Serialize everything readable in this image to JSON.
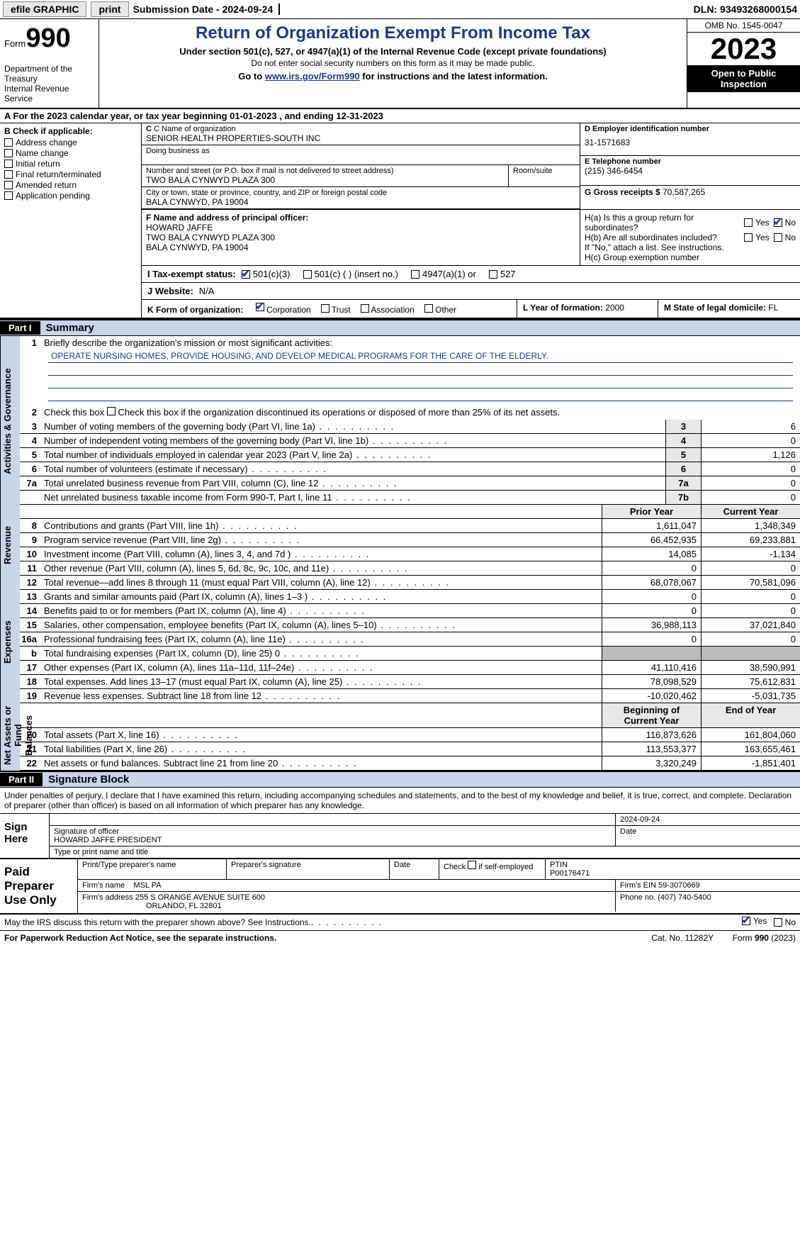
{
  "colors": {
    "accent": "#1a3a8a",
    "part_header_bg": "#000000",
    "part_header_fg": "#ffffff",
    "shade_bg": "#c8d4e8",
    "grey_box": "#e8e8e8",
    "disabled_cell": "#bbbbbb"
  },
  "topbar": {
    "efile": "efile GRAPHIC",
    "print": "print",
    "submission": "Submission Date - 2024-09-24",
    "dln": "DLN: 93493268000154"
  },
  "header": {
    "form_word": "Form",
    "form_num": "990",
    "dept": "Department of the Treasury",
    "irs": "Internal Revenue Service",
    "title": "Return of Organization Exempt From Income Tax",
    "subtitle": "Under section 501(c), 527, or 4947(a)(1) of the Internal Revenue Code (except private foundations)",
    "note": "Do not enter social security numbers on this form as it may be made public.",
    "goto_pre": "Go to ",
    "goto_link": "www.irs.gov/Form990",
    "goto_post": " for instructions and the latest information.",
    "omb": "OMB No. 1545-0047",
    "year": "2023",
    "inspection": "Open to Public Inspection"
  },
  "lineA": "A For the 2023 calendar year, or tax year beginning 01-01-2023   , and ending 12-31-2023",
  "sectionB": {
    "header": "B Check if applicable:",
    "items": [
      "Address change",
      "Name change",
      "Initial return",
      "Final return/terminated",
      "Amended return",
      "Application pending"
    ]
  },
  "sectionC": {
    "name_lbl": "C Name of organization",
    "name": "SENIOR HEALTH PROPERTIES-SOUTH INC",
    "dba_lbl": "Doing business as",
    "dba": "",
    "addr_lbl": "Number and street (or P.O. box if mail is not delivered to street address)",
    "addr": "TWO BALA CYNWYD PLAZA 300",
    "room_lbl": "Room/suite",
    "city_lbl": "City or town, state or province, country, and ZIP or foreign postal code",
    "city": "BALA CYNWYD, PA  19004"
  },
  "sectionD": {
    "lbl": "D Employer identification number",
    "val": "31-1571683"
  },
  "sectionE": {
    "lbl": "E Telephone number",
    "val": "(215) 346-6454"
  },
  "sectionG": {
    "lbl": "G Gross receipts $",
    "val": "70,587,265"
  },
  "sectionF": {
    "lbl": "F  Name and address of principal officer:",
    "name": "HOWARD JAFFE",
    "addr1": "TWO BALA CYNWYD PLAZA 300",
    "addr2": "BALA CYNWYD, PA  19004"
  },
  "sectionH": {
    "ha": "H(a)  Is this a group return for subordinates?",
    "hb": "H(b)  Are all subordinates included?",
    "hb_note": "If \"No,\" attach a list. See instructions.",
    "hc": "H(c)  Group exemption number",
    "yes": "Yes",
    "no": "No",
    "ha_answer_no_checked": true
  },
  "statusI": {
    "label": "I   Tax-exempt status:",
    "opts": [
      "501(c)(3)",
      "501(c) (  ) (insert no.)",
      "4947(a)(1) or",
      "527"
    ],
    "checked_idx": 0
  },
  "sectionJ": {
    "label": "J   Website:",
    "val": "N/A"
  },
  "sectionK": {
    "label": "K Form of organization:",
    "opts": [
      "Corporation",
      "Trust",
      "Association",
      "Other"
    ],
    "checked_idx": 0
  },
  "sectionL": {
    "label": "L Year of formation:",
    "val": "2000"
  },
  "sectionM": {
    "label": "M State of legal domicile:",
    "val": "FL"
  },
  "partI": {
    "tag": "Part I",
    "title": "Summary",
    "q1_lbl": "Briefly describe the organization's mission or most significant activities:",
    "q1_val": "OPERATE NURSING HOMES, PROVIDE HOUSING, AND DEVELOP MEDICAL PROGRAMS FOR THE CARE OF THE ELDERLY.",
    "q2": "Check this box      if the organization discontinued its operations or disposed of more than 25% of its net assets.",
    "side_labels": [
      "Activities & Governance",
      "Revenue",
      "Expenses",
      "Net Assets or Fund Balances"
    ],
    "gov_rows": [
      {
        "n": "3",
        "d": "Number of voting members of the governing body (Part VI, line 1a)",
        "box": "3",
        "v": "6"
      },
      {
        "n": "4",
        "d": "Number of independent voting members of the governing body (Part VI, line 1b)",
        "box": "4",
        "v": "0"
      },
      {
        "n": "5",
        "d": "Total number of individuals employed in calendar year 2023 (Part V, line 2a)",
        "box": "5",
        "v": "1,126"
      },
      {
        "n": "6",
        "d": "Total number of volunteers (estimate if necessary)",
        "box": "6",
        "v": "0"
      },
      {
        "n": "7a",
        "d": "Total unrelated business revenue from Part VIII, column (C), line 12",
        "box": "7a",
        "v": "0"
      },
      {
        "n": "",
        "d": "Net unrelated business taxable income from Form 990-T, Part I, line 11",
        "box": "7b",
        "v": "0"
      }
    ],
    "col_hdr": {
      "prior": "Prior Year",
      "current": "Current Year"
    },
    "rev_rows": [
      {
        "n": "8",
        "d": "Contributions and grants (Part VIII, line 1h)",
        "p": "1,611,047",
        "c": "1,348,349"
      },
      {
        "n": "9",
        "d": "Program service revenue (Part VIII, line 2g)",
        "p": "66,452,935",
        "c": "69,233,881"
      },
      {
        "n": "10",
        "d": "Investment income (Part VIII, column (A), lines 3, 4, and 7d )",
        "p": "14,085",
        "c": "-1,134"
      },
      {
        "n": "11",
        "d": "Other revenue (Part VIII, column (A), lines 5, 6d, 8c, 9c, 10c, and 11e)",
        "p": "0",
        "c": "0"
      },
      {
        "n": "12",
        "d": "Total revenue—add lines 8 through 11 (must equal Part VIII, column (A), line 12)",
        "p": "68,078,067",
        "c": "70,581,096"
      }
    ],
    "exp_rows": [
      {
        "n": "13",
        "d": "Grants and similar amounts paid (Part IX, column (A), lines 1–3 )",
        "p": "0",
        "c": "0"
      },
      {
        "n": "14",
        "d": "Benefits paid to or for members (Part IX, column (A), line 4)",
        "p": "0",
        "c": "0"
      },
      {
        "n": "15",
        "d": "Salaries, other compensation, employee benefits (Part IX, column (A), lines 5–10)",
        "p": "36,988,113",
        "c": "37,021,840"
      },
      {
        "n": "16a",
        "d": "Professional fundraising fees (Part IX, column (A), line 11e)",
        "p": "0",
        "c": "0"
      },
      {
        "n": "b",
        "d": "Total fundraising expenses (Part IX, column (D), line 25) 0",
        "p": "SHADE",
        "c": "SHADE"
      },
      {
        "n": "17",
        "d": "Other expenses (Part IX, column (A), lines 11a–11d, 11f–24e)",
        "p": "41,110,416",
        "c": "38,590,991"
      },
      {
        "n": "18",
        "d": "Total expenses. Add lines 13–17 (must equal Part IX, column (A), line 25)",
        "p": "78,098,529",
        "c": "75,612,831"
      },
      {
        "n": "19",
        "d": "Revenue less expenses. Subtract line 18 from line 12",
        "p": "-10,020,462",
        "c": "-5,031,735"
      }
    ],
    "net_hdr": {
      "p": "Beginning of Current Year",
      "c": "End of Year"
    },
    "net_rows": [
      {
        "n": "20",
        "d": "Total assets (Part X, line 16)",
        "p": "116,873,626",
        "c": "161,804,060"
      },
      {
        "n": "21",
        "d": "Total liabilities (Part X, line 26)",
        "p": "113,553,377",
        "c": "163,655,461"
      },
      {
        "n": "22",
        "d": "Net assets or fund balances. Subtract line 21 from line 20",
        "p": "3,320,249",
        "c": "-1,851,401"
      }
    ]
  },
  "partII": {
    "tag": "Part II",
    "title": "Signature Block",
    "declare": "Under penalties of perjury, I declare that I have examined this return, including accompanying schedules and statements, and to the best of my knowledge and belief, it is true, correct, and complete. Declaration of preparer (other than officer) is based on all information of which preparer has any knowledge.",
    "sign_here": "Sign Here",
    "sig_date": "2024-09-24",
    "sig_officer_lbl": "Signature of officer",
    "sig_name": "HOWARD JAFFE PRESIDENT",
    "sig_type_lbl": "Type or print name and title",
    "date_lbl": "Date",
    "paid": "Paid Preparer Use Only",
    "prep_name_lbl": "Print/Type preparer's name",
    "prep_sig_lbl": "Preparer's signature",
    "prep_date_lbl": "Date",
    "prep_self_lbl": "Check      if self-employed",
    "ptin_lbl": "PTIN",
    "ptin": "P00176471",
    "firm_name_lbl": "Firm's name",
    "firm_name": "MSL PA",
    "firm_ein_lbl": "Firm's EIN",
    "firm_ein": "59-3070669",
    "firm_addr_lbl": "Firm's address",
    "firm_addr1": "255 S ORANGE AVENUE SUITE 600",
    "firm_addr2": "ORLANDO, FL  32801",
    "firm_phone_lbl": "Phone no.",
    "firm_phone": "(407) 740-5400",
    "discuss": "May the IRS discuss this return with the preparer shown above? See Instructions.",
    "discuss_yes_checked": true
  },
  "footer": {
    "paperwork": "For Paperwork Reduction Act Notice, see the separate instructions.",
    "cat": "Cat. No. 11282Y",
    "form": "Form 990 (2023)"
  }
}
